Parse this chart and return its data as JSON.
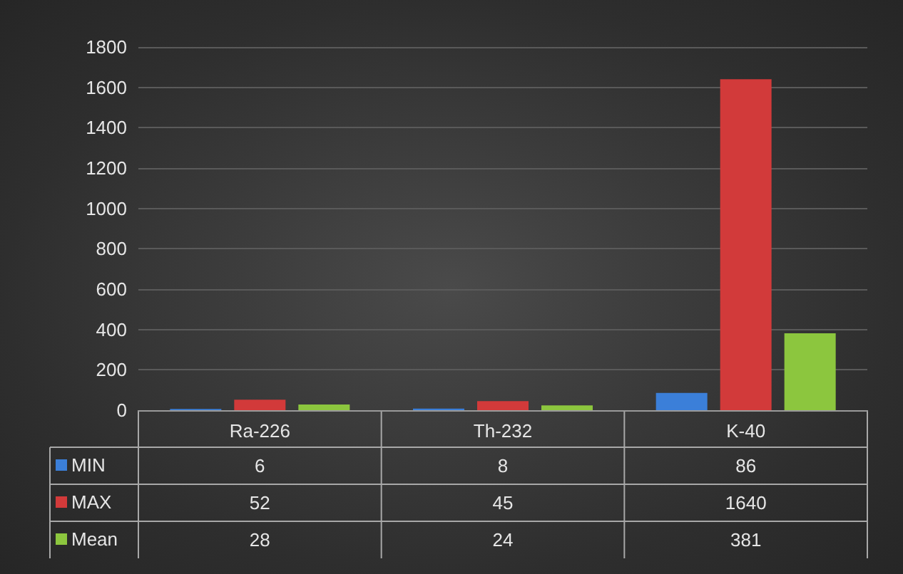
{
  "chart_data": {
    "type": "bar",
    "categories": [
      "Ra-226",
      "Th-232",
      "K-40"
    ],
    "series": [
      {
        "name": "MIN",
        "color": "#3b7fd9",
        "values": [
          6,
          8,
          86
        ]
      },
      {
        "name": "MAX",
        "color": "#d23a3a",
        "values": [
          52,
          45,
          1640
        ]
      },
      {
        "name": "Mean",
        "color": "#8cc63e",
        "values": [
          28,
          24,
          381
        ]
      }
    ],
    "ylim": [
      0,
      1800
    ],
    "yticks": [
      0,
      200,
      400,
      600,
      800,
      1000,
      1200,
      1400,
      1600,
      1800
    ],
    "grid": "y",
    "legend": "bottom left",
    "data_labels": true
  }
}
